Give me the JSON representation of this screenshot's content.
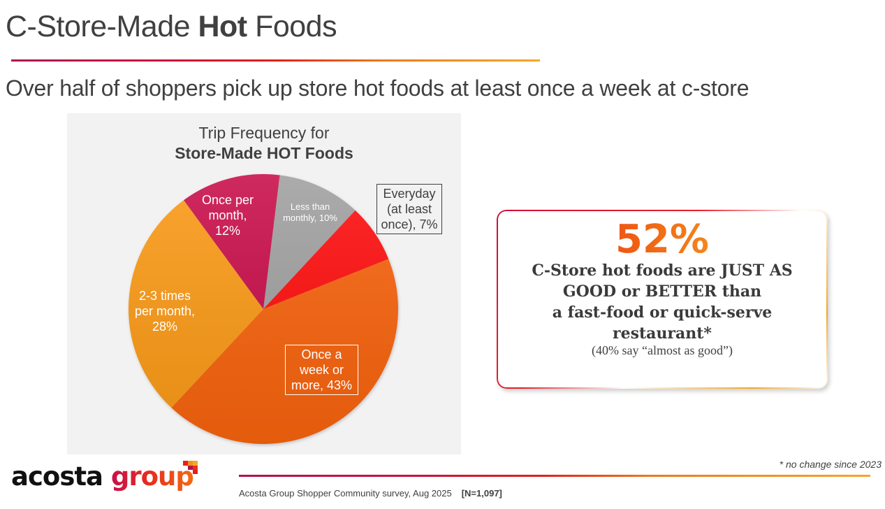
{
  "header": {
    "title_prefix": "C-Store-Made ",
    "title_bold": "Hot",
    "title_suffix": " Foods",
    "subtitle": "Over half of shoppers pick up store hot foods at least once a week at c-store"
  },
  "chart_data": {
    "type": "pie",
    "title": "Trip Frequency for Store-Made HOT Foods",
    "title_line1": "Trip Frequency for",
    "title_line2": "Store-Made HOT Foods",
    "categories": [
      "Less than monthly",
      "Everyday (at least once)",
      "Once a week or more",
      "2-3 times per month",
      "Once per month"
    ],
    "values": [
      10,
      7,
      43,
      28,
      12
    ],
    "unit": "%",
    "colors": [
      "#a0a0a0",
      "#ff1010",
      "#f8640f",
      "#fb9a14",
      "#c8104a"
    ],
    "start_angle_deg": 7,
    "direction": "clockwise",
    "labels": [
      {
        "line1": "Less than",
        "line2": "monthly, 10%"
      },
      {
        "line1": "Everyday",
        "line2": "(at least",
        "line3": "once), 7%"
      },
      {
        "line1": "Once a",
        "line2": "week or",
        "line3": "more, 43%"
      },
      {
        "line1": "2-3 times",
        "line2": "per month,",
        "line3": "28%"
      },
      {
        "line1": "Once per",
        "line2": "month,",
        "line3": "12%"
      }
    ]
  },
  "callout": {
    "stat": "52%",
    "line1": "C-Store hot foods are JUST AS",
    "line2": "GOOD or BETTER than",
    "line3": "a fast-food or quick-serve",
    "line4": "restaurant*",
    "note": "(40% say “almost as good”)"
  },
  "footer": {
    "logo_word1": "acosta",
    "logo_word2": "group",
    "footnote": "* no change since 2023",
    "source": "Acosta Group Shopper Community survey, Aug 2025",
    "sample": "[N=1,097]"
  }
}
